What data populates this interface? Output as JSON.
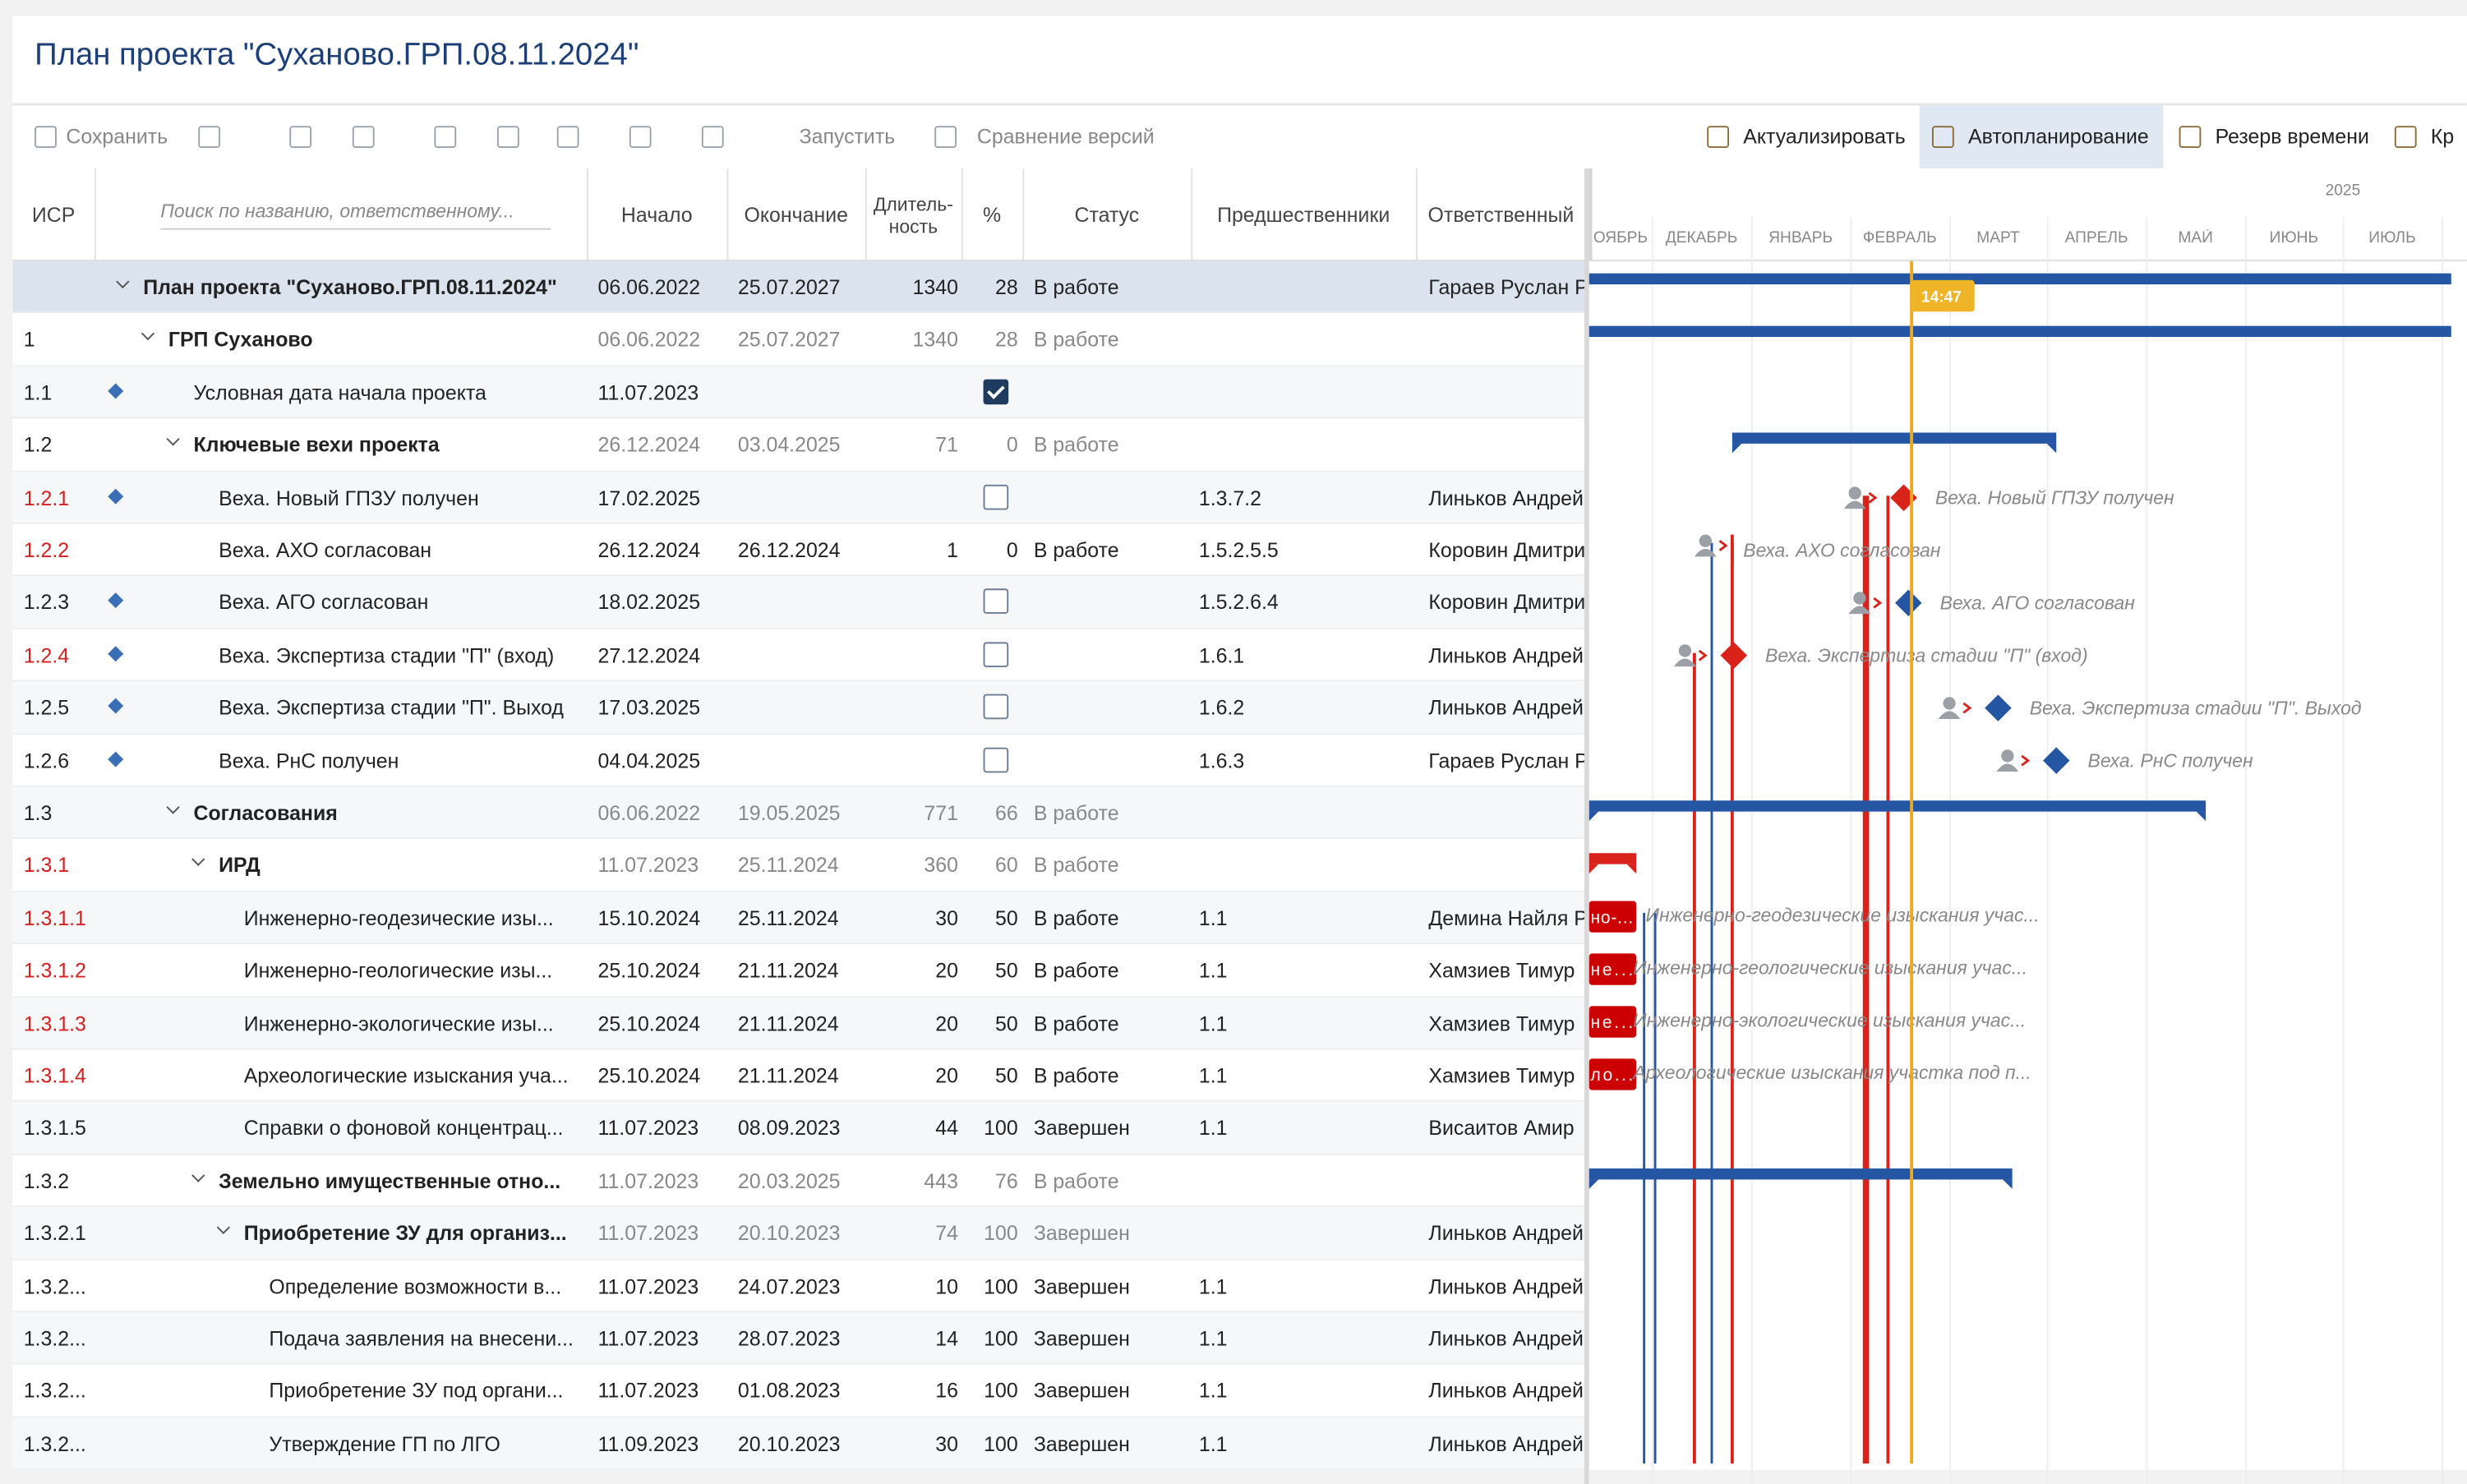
{
  "header": {
    "title": "План проекта \"Суханово.ГРП.08.11.2024\""
  },
  "toolbar": {
    "left": [
      "Сохранить",
      "Запустить",
      "Сравнение версий"
    ],
    "right": [
      "Актуализировать",
      "Автопланирование",
      "Резерв времени",
      "Кр"
    ]
  },
  "table": {
    "columns": {
      "wbs": "ИСР",
      "search": "Поиск по названию, ответственному...",
      "start": "Начало",
      "end": "Окончание",
      "duration": [
        "Длитель-",
        "ность"
      ],
      "percent": "%",
      "status": "Статус",
      "pred": "Предшественники",
      "resp": "Ответственный"
    },
    "rows": [
      {
        "wbs": "",
        "name": "План проекта \"Суханово.ГРП.08.11.2024\"",
        "start": "06.06.2022",
        "end": "25.07.2027",
        "dur": "1340",
        "pct": "28",
        "status": "В работе",
        "resp": "Гараев Руслан Р",
        "level": 0,
        "summary": true,
        "selected": true
      },
      {
        "wbs": "1",
        "name": "ГРП Суханово",
        "start": "06.06.2022",
        "end": "25.07.2027",
        "dur": "1340",
        "pct": "28",
        "status": "В работе",
        "level": 1,
        "summary": true
      },
      {
        "wbs": "1.1",
        "name": "Условная дата начала проекта",
        "start": "11.07.2023",
        "level": 2,
        "milestone": true,
        "done": true
      },
      {
        "wbs": "1.2",
        "name": "Ключевые вехи проекта",
        "start": "26.12.2024",
        "end": "03.04.2025",
        "dur": "71",
        "pct": "0",
        "status": "В работе",
        "level": 2,
        "summary": true
      },
      {
        "wbs": "1.2.1",
        "name": "Веха. Новый ГПЗУ получен",
        "start": "17.02.2025",
        "pred": "1.3.7.2",
        "resp": "Линьков Андрей",
        "level": 3,
        "milestone": true,
        "done": false,
        "critical": true,
        "gantt_label": "Веха. Новый ГПЗУ получен"
      },
      {
        "wbs": "1.2.2",
        "name": "Веха. АХО согласован",
        "start": "26.12.2024",
        "end": "26.12.2024",
        "dur": "1",
        "pct": "0",
        "status": "В работе",
        "pred": "1.5.2.5.5",
        "resp": "Коровин Дмитрий",
        "level": 3,
        "critical": true,
        "gantt_label": "Веха. АХО согласован"
      },
      {
        "wbs": "1.2.3",
        "name": "Веха. АГО согласован",
        "start": "18.02.2025",
        "pred": "1.5.2.6.4",
        "resp": "Коровин Дмитрий",
        "level": 3,
        "milestone": true,
        "done": false,
        "gantt_label": "Веха. АГО согласован"
      },
      {
        "wbs": "1.2.4",
        "name": "Веха. Экспертиза стадии \"П\" (вход)",
        "start": "27.12.2024",
        "pred": "1.6.1",
        "resp": "Линьков Андрей",
        "level": 3,
        "milestone": true,
        "done": false,
        "critical": true,
        "gantt_label": "Веха. Экспертиза стадии \"П\" (вход)"
      },
      {
        "wbs": "1.2.5",
        "name": "Веха. Экспертиза стадии \"П\". Выход",
        "start": "17.03.2025",
        "pred": "1.6.2",
        "resp": "Линьков Андрей",
        "level": 3,
        "milestone": true,
        "done": false,
        "gantt_label": "Веха. Экспертиза стадии \"П\". Выход"
      },
      {
        "wbs": "1.2.6",
        "name": "Веха. РнС получен",
        "start": "04.04.2025",
        "pred": "1.6.3",
        "resp": "Гараев Руслан Р",
        "level": 3,
        "milestone": true,
        "done": false,
        "gantt_label": "Веха. РнС получен"
      },
      {
        "wbs": "1.3",
        "name": "Согласования",
        "start": "06.06.2022",
        "end": "19.05.2025",
        "dur": "771",
        "pct": "66",
        "status": "В работе",
        "level": 2,
        "summary": true
      },
      {
        "wbs": "1.3.1",
        "name": "ИРД",
        "start": "11.07.2023",
        "end": "25.11.2024",
        "dur": "360",
        "pct": "60",
        "status": "В работе",
        "level": 3,
        "summary": true,
        "critical": true
      },
      {
        "wbs": "1.3.1.1",
        "name": "Инженерно-геодезические изы...",
        "start": "15.10.2024",
        "end": "25.11.2024",
        "dur": "30",
        "pct": "50",
        "status": "В работе",
        "pred": "1.1",
        "resp": "Демина Найля Р",
        "level": 4,
        "critical": true,
        "bar_text": "но-...",
        "gantt_label": "Инженерно-геодезические изыскания учас..."
      },
      {
        "wbs": "1.3.1.2",
        "name": "Инженерно-геологические изы...",
        "start": "25.10.2024",
        "end": "21.11.2024",
        "dur": "20",
        "pct": "50",
        "status": "В работе",
        "pred": "1.1",
        "resp": "Хамзиев Тимур",
        "level": 4,
        "critical": true,
        "bar_text": "не...",
        "gantt_label": "Инженерно-геологические изыскания учас..."
      },
      {
        "wbs": "1.3.1.3",
        "name": "Инженерно-экологические изы...",
        "start": "25.10.2024",
        "end": "21.11.2024",
        "dur": "20",
        "pct": "50",
        "status": "В работе",
        "pred": "1.1",
        "resp": "Хамзиев Тимур",
        "level": 4,
        "critical": true,
        "bar_text": "не...",
        "gantt_label": "Инженерно-экологические изыскания учас..."
      },
      {
        "wbs": "1.3.1.4",
        "name": "Археологические изыскания уча...",
        "start": "25.10.2024",
        "end": "21.11.2024",
        "dur": "20",
        "pct": "50",
        "status": "В работе",
        "pred": "1.1",
        "resp": "Хамзиев Тимур",
        "level": 4,
        "critical": true,
        "bar_text": "ло...",
        "gantt_label": "Археологические изыскания участка под п..."
      },
      {
        "wbs": "1.3.1.5",
        "name": "Справки о фоновой концентрац...",
        "start": "11.07.2023",
        "end": "08.09.2023",
        "dur": "44",
        "pct": "100",
        "status": "Завершен",
        "pred": "1.1",
        "resp": "Висаитов Амир",
        "level": 4
      },
      {
        "wbs": "1.3.2",
        "name": "Земельно имущественные отно...",
        "start": "11.07.2023",
        "end": "20.03.2025",
        "dur": "443",
        "pct": "76",
        "status": "В работе",
        "level": 3,
        "summary": true
      },
      {
        "wbs": "1.3.2.1",
        "name": "Приобретение ЗУ для организ...",
        "start": "11.07.2023",
        "end": "20.10.2023",
        "dur": "74",
        "pct": "100",
        "status": "Завершен",
        "resp": "Линьков Андрей",
        "level": 4,
        "summary": true
      },
      {
        "wbs": "1.3.2...",
        "name": "Определение возможности в...",
        "start": "11.07.2023",
        "end": "24.07.2023",
        "dur": "10",
        "pct": "100",
        "status": "Завершен",
        "pred": "1.1",
        "resp": "Линьков Андрей",
        "level": 5
      },
      {
        "wbs": "1.3.2...",
        "name": "Подача заявления на внесени...",
        "start": "11.07.2023",
        "end": "28.07.2023",
        "dur": "14",
        "pct": "100",
        "status": "Завершен",
        "pred": "1.1",
        "resp": "Линьков Андрей",
        "level": 5
      },
      {
        "wbs": "1.3.2...",
        "name": "Приобретение ЗУ под органи...",
        "start": "11.07.2023",
        "end": "01.08.2023",
        "dur": "16",
        "pct": "100",
        "status": "Завершен",
        "pred": "1.1",
        "resp": "Линьков Андрей",
        "level": 5
      },
      {
        "wbs": "1.3.2...",
        "name": "Утверждение ГП по ЛГО",
        "start": "11.09.2023",
        "end": "20.10.2023",
        "dur": "30",
        "pct": "100",
        "status": "Завершен",
        "pred": "1.1",
        "resp": "Линьков Андрей",
        "level": 5
      }
    ]
  },
  "gantt": {
    "year": "2025",
    "months": [
      "ОЯБРЬ",
      "ДЕКАБРЬ",
      "ЯНВАРЬ",
      "ФЕВРАЛЬ",
      "МАРТ",
      "АПРЕЛЬ",
      "МАЙ",
      "ИЮНЬ",
      "ИЮЛЬ"
    ],
    "now": "14:47"
  }
}
